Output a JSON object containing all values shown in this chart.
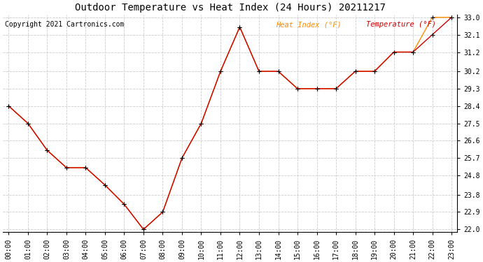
{
  "title": "Outdoor Temperature vs Heat Index (24 Hours) 20211217",
  "copyright": "Copyright 2021 Cartronics.com",
  "legend_heat": "Heat Index (°F)",
  "legend_temp": "Temperature (°F)",
  "x_labels": [
    "00:00",
    "01:00",
    "02:00",
    "03:00",
    "04:00",
    "05:00",
    "06:00",
    "07:00",
    "08:00",
    "09:00",
    "10:00",
    "11:00",
    "12:00",
    "13:00",
    "14:00",
    "15:00",
    "16:00",
    "17:00",
    "18:00",
    "19:00",
    "20:00",
    "21:00",
    "22:00",
    "23:00"
  ],
  "temperature": [
    28.4,
    27.5,
    26.1,
    25.2,
    25.2,
    24.3,
    23.3,
    22.0,
    22.9,
    25.7,
    27.5,
    30.2,
    32.5,
    30.2,
    30.2,
    29.3,
    29.3,
    29.3,
    30.2,
    30.2,
    31.2,
    31.2,
    32.1,
    33.0
  ],
  "heat_index": [
    28.4,
    27.5,
    26.1,
    25.2,
    25.2,
    24.3,
    23.3,
    22.0,
    22.9,
    25.7,
    27.5,
    30.2,
    32.5,
    30.2,
    30.2,
    29.3,
    29.3,
    29.3,
    30.2,
    30.2,
    31.2,
    31.2,
    33.0,
    33.0
  ],
  "temp_color": "#cc0000",
  "heat_color": "#ff8c00",
  "marker_color": "#000000",
  "ylim_min": 22.0,
  "ylim_max": 33.0,
  "yticks": [
    22.0,
    22.9,
    23.8,
    24.8,
    25.7,
    26.6,
    27.5,
    28.4,
    29.3,
    30.2,
    31.2,
    32.1,
    33.0
  ],
  "bg_color": "#ffffff",
  "grid_color": "#cccccc",
  "title_fontsize": 10,
  "tick_fontsize": 7,
  "legend_fontsize": 7.5,
  "copyright_fontsize": 7
}
